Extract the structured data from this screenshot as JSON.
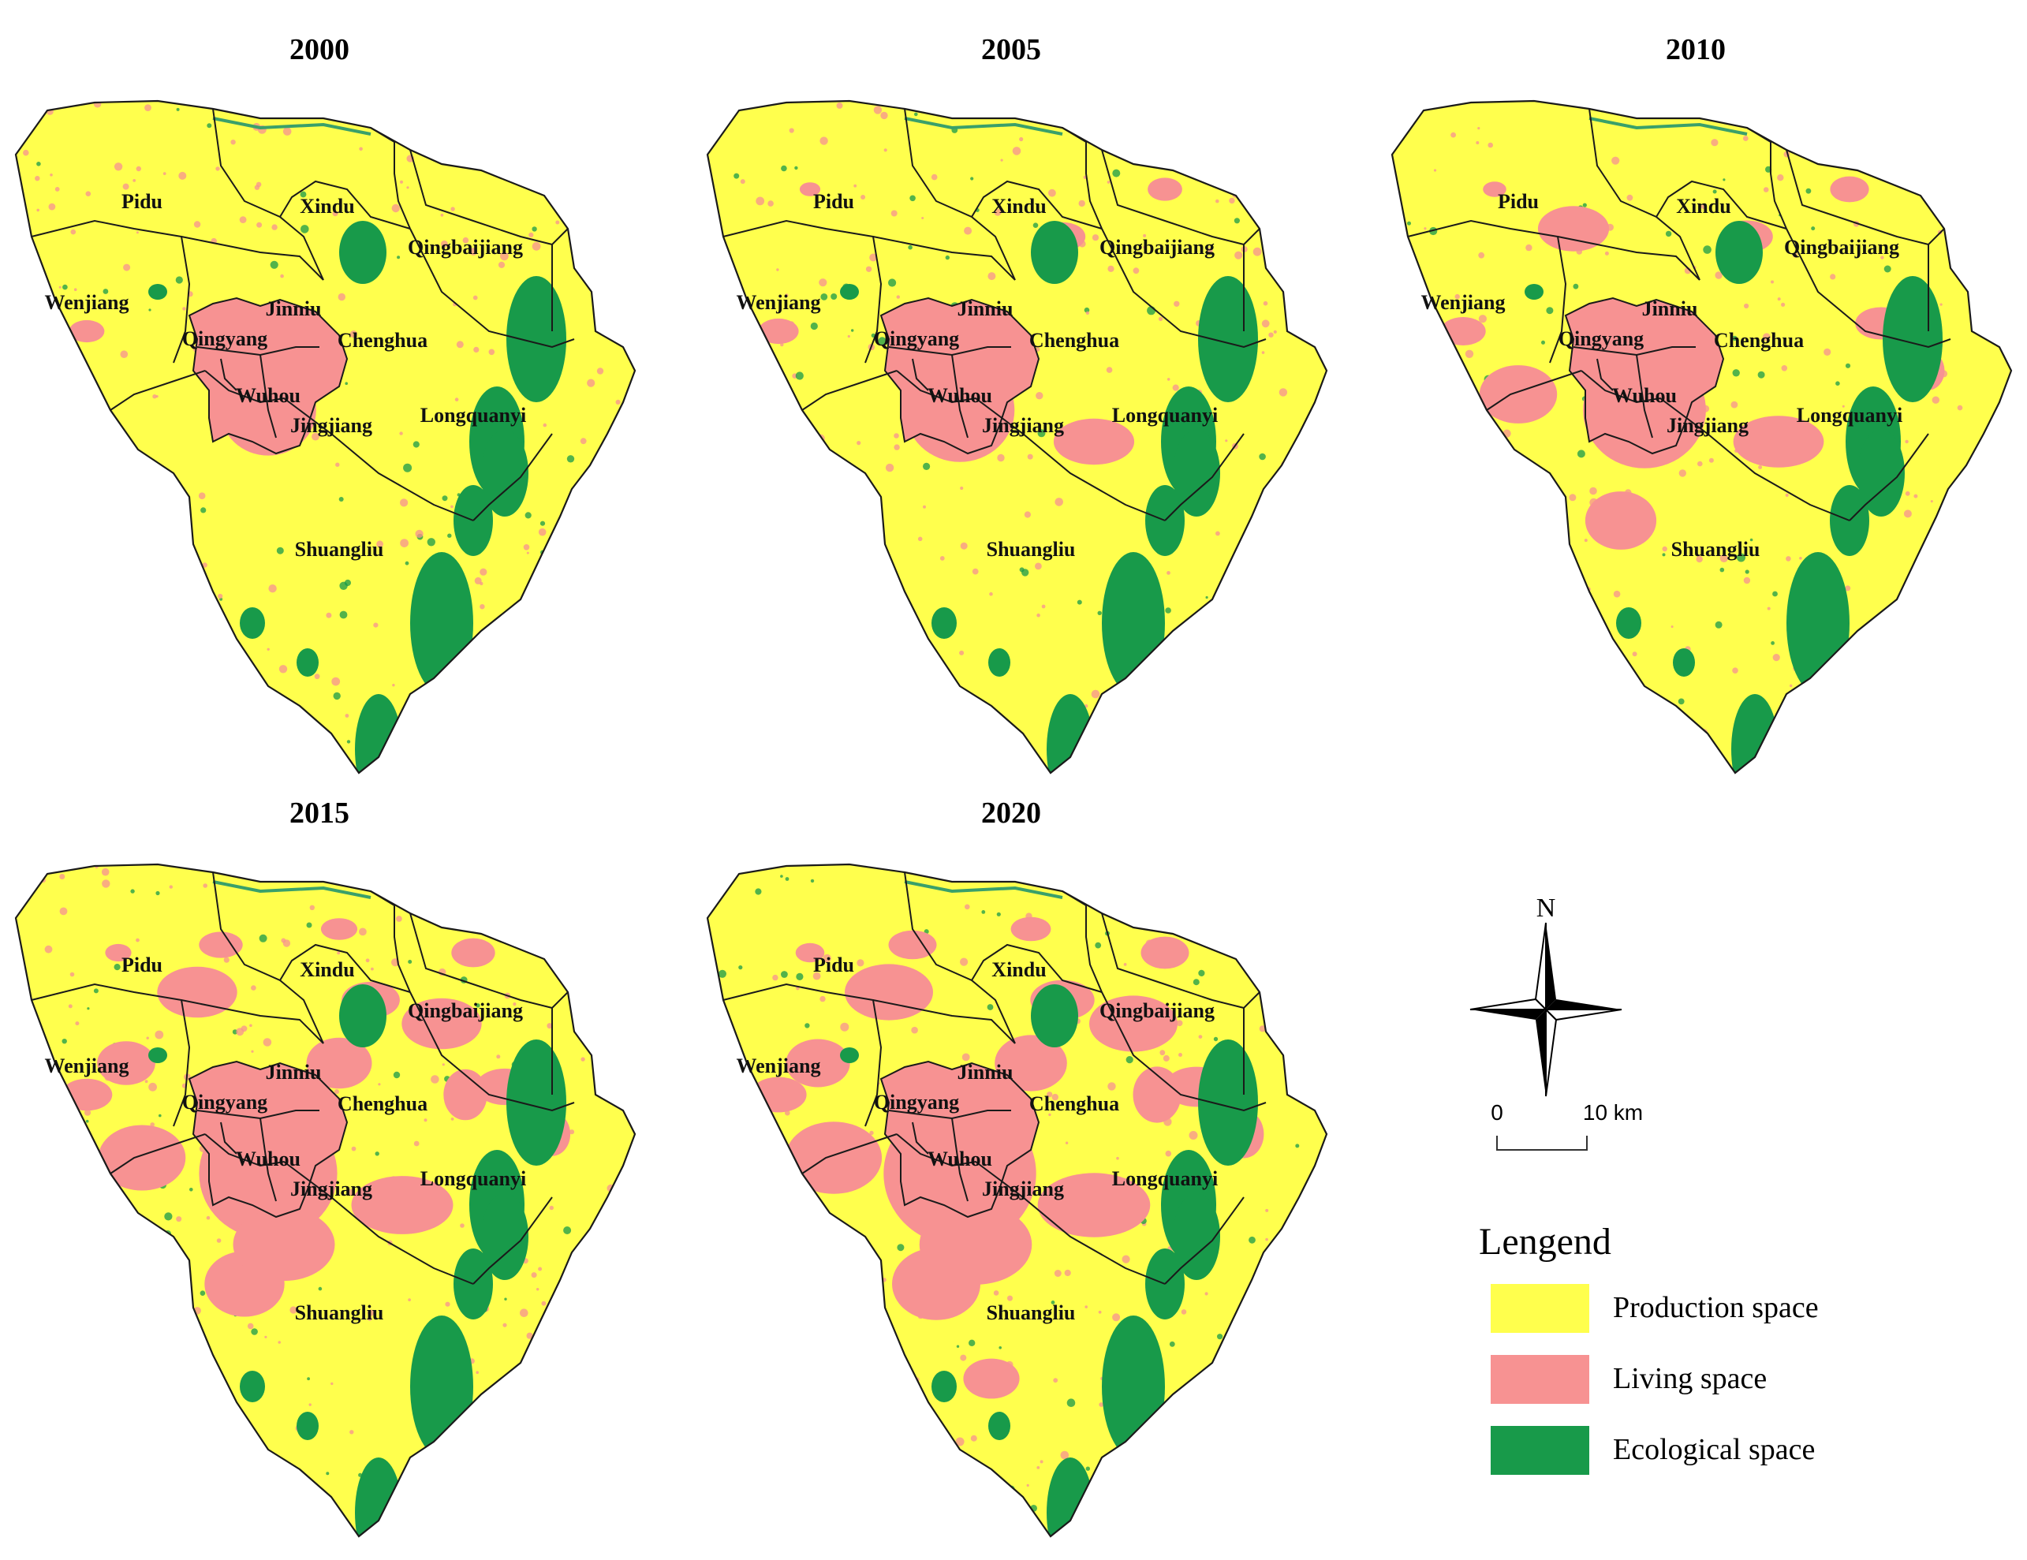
{
  "colors": {
    "production": "#ffff4d",
    "living": "#f79292",
    "ecological": "#189a4a",
    "boundary": "#1a1a1a",
    "river": "#3aa06a"
  },
  "districts": [
    "Pidu",
    "Xindu",
    "Qingbaijiang",
    "Wenjiang",
    "Jinniu",
    "Qingyang",
    "Chenghua",
    "Wuhou",
    "Jingjiang",
    "Longquanyi",
    "Shuangliu"
  ],
  "panels": [
    {
      "year": "2000",
      "living_level": 0.15
    },
    {
      "year": "2005",
      "living_level": 0.3
    },
    {
      "year": "2010",
      "living_level": 0.45
    },
    {
      "year": "2015",
      "living_level": 0.62
    },
    {
      "year": "2020",
      "living_level": 0.78
    }
  ],
  "north_arrow": {
    "label": "N",
    "icon": "compass-rose-icon"
  },
  "scale_bar": {
    "label_start": "0",
    "label_end": "10 km"
  },
  "legend": {
    "title": "Lengend",
    "items": [
      {
        "label": "Production space",
        "class": "production"
      },
      {
        "label": "Living space",
        "class": "living"
      },
      {
        "label": "Ecological space",
        "class": "ecological"
      }
    ]
  }
}
